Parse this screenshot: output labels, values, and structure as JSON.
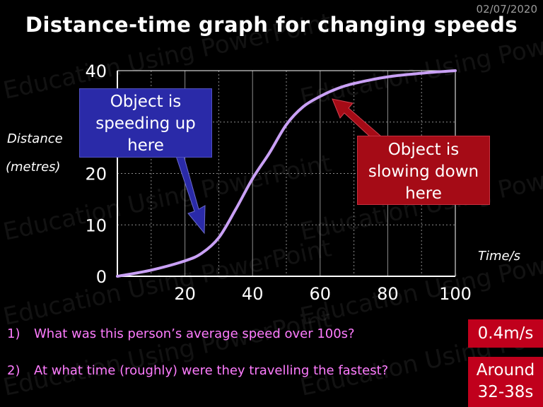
{
  "date": "02/07/2020",
  "title": "Distance-time graph for changing speeds",
  "watermark_text": "Education Using PowerPoint",
  "colors": {
    "background": "#000000",
    "curve": "#c9a0f5",
    "blue_callout": "#2a2aa8",
    "red_callout": "#a50b16",
    "question_text": "#ff7cff",
    "answer_box": "#c0001c"
  },
  "chart_data": {
    "type": "line",
    "title": "Distance-time graph for changing speeds",
    "xlabel": "Time/s",
    "ylabel_line1": "Distance",
    "ylabel_line2": "(metres)",
    "xlim": [
      0,
      100
    ],
    "ylim": [
      0,
      40
    ],
    "x_ticks": [
      20,
      40,
      60,
      80,
      100
    ],
    "y_ticks": [
      0,
      10,
      20,
      40
    ],
    "grid": true,
    "series": [
      {
        "x": [
          0,
          10,
          20,
          25,
          30,
          35,
          40,
          45,
          50,
          55,
          60,
          65,
          70,
          80,
          90,
          100
        ],
        "y": [
          0,
          1.2,
          3,
          4.5,
          7.5,
          13,
          19,
          24,
          29.5,
          33,
          35,
          36.5,
          37.5,
          38.8,
          39.5,
          40
        ]
      }
    ]
  },
  "callouts": {
    "speeding_up": "Object is speeding up here",
    "slowing_down": "Object is slowing down here"
  },
  "questions": [
    {
      "number": "1)",
      "text": "What was this person’s average speed over 100s?",
      "answer": "0.4m/s"
    },
    {
      "number": "2)",
      "text": "At what time (roughly) were they travelling the fastest?",
      "answer_line1": "Around",
      "answer_line2": "32-38s"
    }
  ]
}
